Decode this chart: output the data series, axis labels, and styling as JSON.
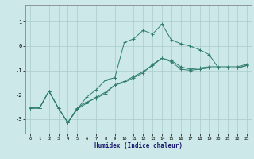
{
  "xlabel": "Humidex (Indice chaleur)",
  "bg_color": "#cce8e8",
  "grid_color": "#aacccc",
  "line_color": "#2e7d6e",
  "xlim": [
    -0.5,
    23.5
  ],
  "ylim": [
    -3.6,
    1.7
  ],
  "yticks": [
    -3,
    -2,
    -1,
    0,
    1
  ],
  "xticks": [
    0,
    1,
    2,
    3,
    4,
    5,
    6,
    7,
    8,
    9,
    10,
    11,
    12,
    13,
    14,
    15,
    16,
    17,
    18,
    19,
    20,
    21,
    22,
    23
  ],
  "line1_x": [
    0,
    1,
    2,
    3,
    4,
    5,
    6,
    7,
    8,
    9,
    10,
    11,
    12,
    13,
    14,
    15,
    16,
    17,
    18,
    19,
    20,
    21,
    22,
    23
  ],
  "line1_y": [
    -2.55,
    -2.55,
    -1.85,
    -2.55,
    -3.15,
    -2.6,
    -2.35,
    -2.1,
    -1.9,
    -1.6,
    -1.45,
    -1.25,
    -1.05,
    -0.8,
    -0.5,
    -0.65,
    -0.95,
    -1.0,
    -0.95,
    -0.9,
    -0.9,
    -0.9,
    -0.9,
    -0.8
  ],
  "line2_x": [
    0,
    1,
    2,
    3,
    4,
    5,
    6,
    7,
    8,
    9,
    10,
    11,
    12,
    13,
    14,
    15,
    16,
    17,
    18,
    19,
    20,
    21,
    22,
    23
  ],
  "line2_y": [
    -2.55,
    -2.55,
    -1.85,
    -2.55,
    -3.15,
    -2.6,
    -2.1,
    -1.8,
    -1.4,
    -1.3,
    0.15,
    0.3,
    0.65,
    0.5,
    0.9,
    0.25,
    0.1,
    0.0,
    -0.15,
    -0.35,
    -0.9,
    -0.9,
    -0.9,
    -0.8
  ],
  "line3_x": [
    0,
    1,
    2,
    3,
    4,
    5,
    6,
    7,
    8,
    9,
    10,
    11,
    12,
    13,
    14,
    15,
    16,
    17,
    18,
    19,
    20,
    21,
    22,
    23
  ],
  "line3_y": [
    -2.55,
    -2.55,
    -1.85,
    -2.55,
    -3.15,
    -2.55,
    -2.3,
    -2.15,
    -1.95,
    -1.6,
    -1.5,
    -1.3,
    -1.1,
    -0.75,
    -0.5,
    -0.6,
    -0.85,
    -0.95,
    -0.9,
    -0.85,
    -0.85,
    -0.85,
    -0.85,
    -0.75
  ]
}
